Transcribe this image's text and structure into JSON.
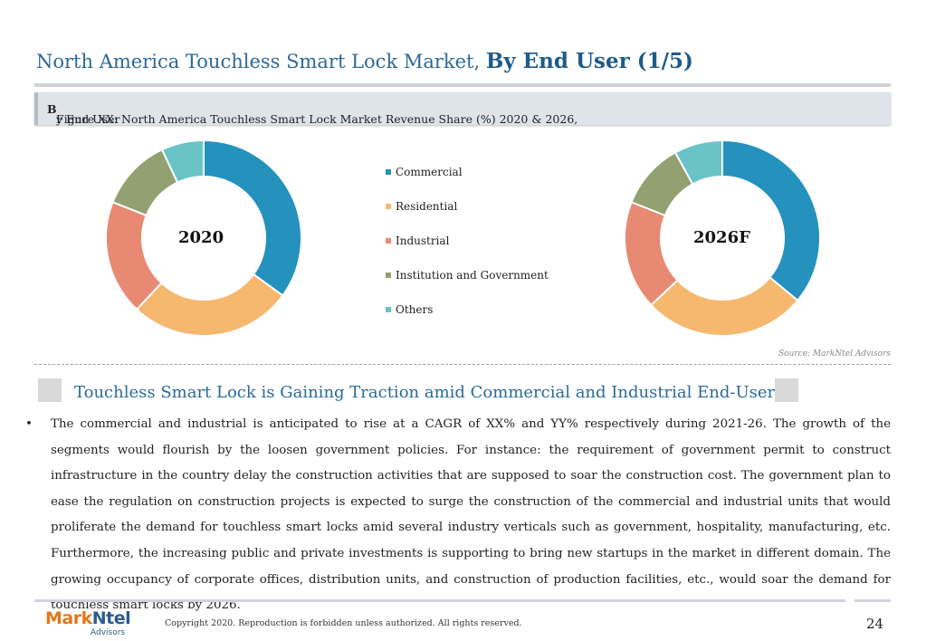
{
  "header": {
    "title_regular": "North America Touchless Smart Lock Market, ",
    "title_bold": "By End User (1/5)"
  },
  "figure": {
    "caption_prefix": "Figure XX: North America Touchless Smart Lock Market Revenue Share (%) 2020 & 2026, ",
    "caption_bold": "B",
    "caption_suffix": "y End User"
  },
  "chart_data": [
    {
      "type": "pie",
      "donut": true,
      "center_label": "2020",
      "categories": [
        "Commercial",
        "Residential",
        "Industrial",
        "Institution and Government",
        "Others"
      ],
      "values": [
        35,
        27,
        19,
        12,
        7
      ],
      "colors": [
        "#2591bd",
        "#f6b86f",
        "#e88a73",
        "#93a072",
        "#6ac4c7"
      ],
      "legend": "center"
    },
    {
      "type": "pie",
      "donut": true,
      "center_label": "2026F",
      "categories": [
        "Commercial",
        "Residential",
        "Industrial",
        "Institution and Government",
        "Others"
      ],
      "values": [
        36,
        27,
        18,
        11,
        8
      ],
      "colors": [
        "#2591bd",
        "#f6b86f",
        "#e88a73",
        "#93a072",
        "#6ac4c7"
      ],
      "legend": "center"
    }
  ],
  "legend": {
    "items": [
      {
        "label": "Commercial",
        "color": "#2591bd"
      },
      {
        "label": "Residential",
        "color": "#f6b86f"
      },
      {
        "label": "Industrial",
        "color": "#e88a73"
      },
      {
        "label": "Institution and Government",
        "color": "#93a072"
      },
      {
        "label": "Others",
        "color": "#6ac4c7"
      }
    ]
  },
  "source": "Source: MarkNtel Advisors",
  "section": {
    "heading": "Touchless Smart Lock is Gaining Traction amid Commercial and Industrial End-Users",
    "bullet_symbol": "•",
    "bullet": "The commercial and industrial is anticipated to rise at a CAGR of XX% and YY% respectively during 2021-26. The growth of the segments would flourish by the loosen government policies. For instance: the requirement of government permit to construct infrastructure in the country delay the construction activities that are supposed to soar the construction cost. The government plan to ease the regulation on construction projects is expected to surge the construction of the commercial and industrial units that would proliferate the demand for touchless smart locks amid several industry verticals such as government, hospitality, manufacturing, etc. Furthermore, the increasing public and private investments is supporting to bring new startups in the market in different domain. The growing occupancy of corporate offices, distribution units, and construction of production facilities, etc., would soar the demand for touchless smart locks by 2026."
  },
  "footer": {
    "logo_mark": "Mark",
    "logo_ntel": "Ntel",
    "logo_sub": "Advisors",
    "copyright": "Copyright 2020. Reproduction is forbidden unless authorized. All rights reserved.",
    "page": "24"
  }
}
